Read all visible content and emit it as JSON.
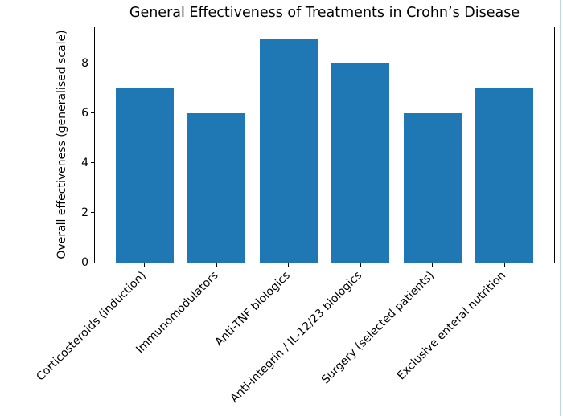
{
  "figure": {
    "background_color": "#ffffff",
    "right_edge_line_color": "#b9d8de"
  },
  "chart_data": {
    "type": "bar",
    "title": "General Effectiveness of Treatments in Crohn’s Disease",
    "categories": [
      "Corticosteroids (induction)",
      "Immunomodulators",
      "Anti-TNF biologics",
      "Anti-integrin / IL-12/23 biologics",
      "Surgery (selected patients)",
      "Exclusive enteral nutrition"
    ],
    "values": [
      7,
      6,
      9,
      8,
      6,
      7
    ],
    "xlabel": "",
    "ylabel": "Overall effectiveness (generalised scale)",
    "ylim": [
      0,
      9.45
    ],
    "yticks": [
      0,
      2,
      4,
      6,
      8
    ],
    "bar_color": "#1f77b4",
    "bar_rel_width": 0.8,
    "x_margin": 0.69,
    "x_tick_label_rotation_deg": 45,
    "grid": false,
    "legend": "none",
    "axis_color": "#000000",
    "text_color": "#000000"
  }
}
